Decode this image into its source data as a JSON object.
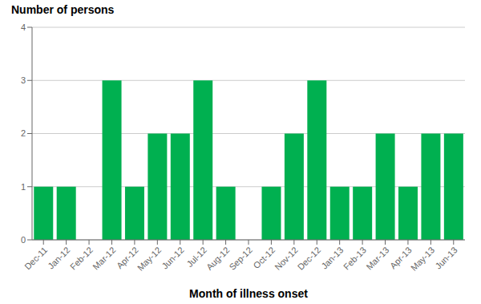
{
  "chart_data": {
    "type": "bar",
    "xlabel": "Month of illness onset",
    "ylabel": "Number of persons",
    "categories": [
      "Dec-11",
      "Jan-12",
      "Feb-12",
      "Mar-12",
      "Apr-12",
      "May-12",
      "Jun-12",
      "Jul-12",
      "Aug-12",
      "Sep-12",
      "Oct-12",
      "Nov-12",
      "Dec-12",
      "Jan-13",
      "Feb-13",
      "Mar-13",
      "Apr-13",
      "May-13",
      "Jun-13"
    ],
    "values": [
      1,
      1,
      0,
      3,
      1,
      2,
      2,
      3,
      1,
      0,
      1,
      2,
      3,
      1,
      1,
      2,
      1,
      2,
      2
    ],
    "color": "#00b050",
    "ylim": [
      0,
      4
    ],
    "yticks": [
      0,
      1,
      2,
      3,
      4
    ],
    "grid": true
  }
}
